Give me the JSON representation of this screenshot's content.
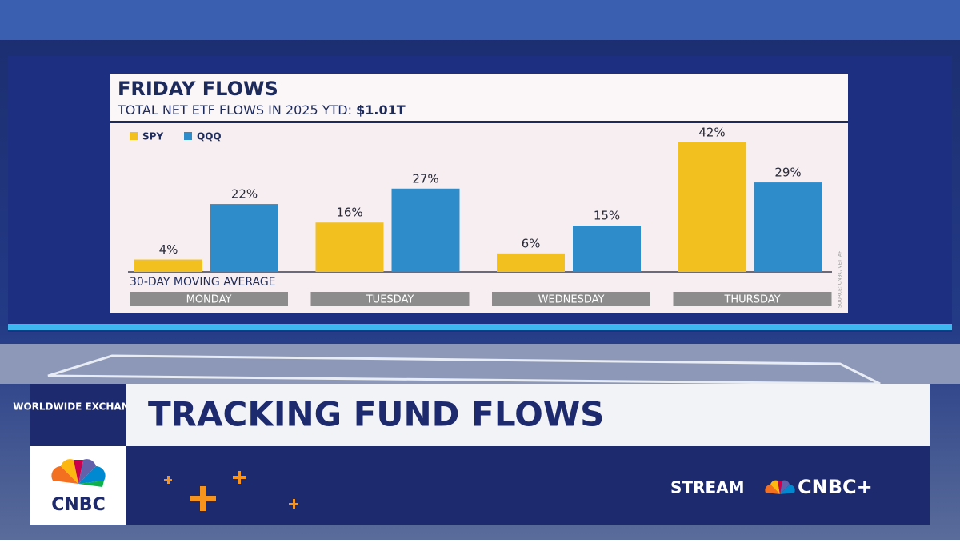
{
  "chart_data": {
    "type": "bar",
    "title": "FRIDAY FLOWS",
    "subtitle": "TOTAL NET ETF FLOWS IN 2025 YTD:",
    "subtitle_value": "$1.01T",
    "annotation": "30-DAY MOVING AVERAGE",
    "source": "SOURCE: CNBC, VETTAFI",
    "categories": [
      "MONDAY",
      "TUESDAY",
      "WEDNESDAY",
      "THURSDAY"
    ],
    "series": [
      {
        "name": "SPY",
        "color": "#f3c11f",
        "values": [
          4,
          16,
          6,
          42
        ],
        "value_labels": [
          "4%",
          "16%",
          "6%",
          "42%"
        ]
      },
      {
        "name": "QQQ",
        "color": "#2f8ccb",
        "values": [
          22,
          27,
          15,
          29
        ],
        "value_labels": [
          "22%",
          "27%",
          "15%",
          "29%"
        ]
      }
    ]
  },
  "lower_third": {
    "show": "WORLDWIDE EXCHANGE",
    "headline": "TRACKING FUND FLOWS",
    "network": "CNBC",
    "stream": "STREAM",
    "stream_brand": "CNBC+"
  }
}
